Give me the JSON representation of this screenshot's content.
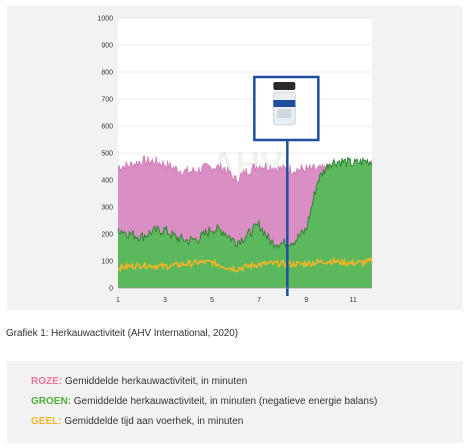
{
  "caption": "Grafiek 1: Herkauwactiviteit (AHV International, 2020)",
  "legend": [
    {
      "key": "ROZE:",
      "text": "Gemiddelde herkauwactiviteit, in minuten",
      "color": "#e8769e"
    },
    {
      "key": "GROEN:",
      "text": "Gemiddelde herkauwactiviteit, in minuten (negatieve energie balans)",
      "color": "#4caf3c"
    },
    {
      "key": "GEEL:",
      "text": "Gemiddelde tijd aan voerhek, in minuten",
      "color": "#f0b52a"
    }
  ],
  "watermark": "AHV",
  "chart_data": {
    "type": "area",
    "title": "",
    "xlabel": "",
    "ylabel": "",
    "xlim": [
      1,
      11.8
    ],
    "ylim": [
      0,
      1000
    ],
    "x_ticks": [
      "1",
      "3",
      "5",
      "7",
      "9",
      "11"
    ],
    "y_ticks": [
      "0",
      "100",
      "200",
      "300",
      "400",
      "500",
      "600",
      "700",
      "800",
      "900",
      "1000"
    ],
    "grid": true,
    "series": [
      {
        "color": "#d98fc4",
        "x": [
          1,
          1.5,
          2,
          2.5,
          3,
          3.5,
          4,
          4.5,
          5,
          5.5,
          6,
          6.5,
          7,
          7.5,
          8,
          8.5,
          9,
          9.5,
          10,
          10.5,
          11,
          11.5,
          11.8
        ],
        "values": [
          450,
          455,
          470,
          470,
          460,
          440,
          430,
          440,
          450,
          445,
          400,
          435,
          455,
          450,
          440,
          440,
          440,
          440,
          440,
          440,
          440,
          450,
          460
        ]
      },
      {
        "color": "#5cb85c",
        "x": [
          1,
          1.5,
          2,
          2.5,
          3,
          3.5,
          4,
          4.5,
          5,
          5.5,
          6,
          6.5,
          7,
          7.5,
          8,
          8.5,
          9,
          9.5,
          10,
          10.5,
          11,
          11.5,
          11.8
        ],
        "values": [
          220,
          200,
          190,
          210,
          215,
          185,
          175,
          185,
          220,
          210,
          170,
          195,
          235,
          170,
          165,
          175,
          215,
          400,
          465,
          470,
          460,
          470,
          470
        ]
      },
      {
        "color": "#f0b52a",
        "x": [
          1,
          1.5,
          2,
          2.5,
          3,
          3.5,
          4,
          4.5,
          5,
          5.5,
          6,
          6.5,
          7,
          7.5,
          8,
          8.5,
          9,
          9.5,
          10,
          10.5,
          11,
          11.5,
          11.8
        ],
        "values": [
          75,
          80,
          85,
          82,
          80,
          85,
          90,
          95,
          95,
          80,
          70,
          80,
          88,
          90,
          90,
          88,
          90,
          95,
          100,
          95,
          92,
          95,
          100
        ]
      }
    ],
    "marker": {
      "x": 8.2,
      "label": ""
    }
  }
}
